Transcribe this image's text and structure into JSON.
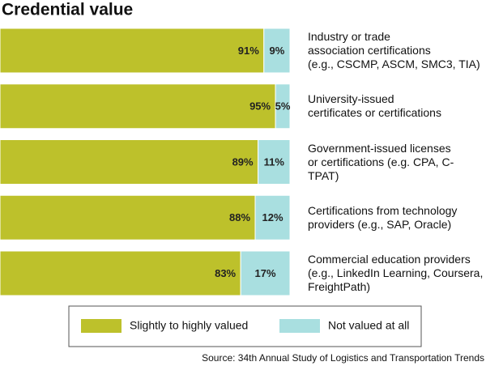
{
  "chart_data": {
    "type": "stacked-bar-horizontal",
    "title": "Credential value",
    "categories": [
      "Industry or trade\nassociation certifications\n(e.g., CSCMP, ASCM, SMC3, TIA)",
      "University-issued\ncertificates or certifications",
      "Government-issued licenses\nor certifications (e.g. CPA, C-TPAT)",
      "Certifications from technology\nproviders (e.g., SAP, Oracle)",
      "Commercial education providers\n(e.g., LinkedIn Learning, Coursera,\nFreightPath)"
    ],
    "series": [
      {
        "name": "Slightly to highly valued",
        "color": "#bdc12b",
        "values": [
          91,
          95,
          89,
          88,
          83
        ],
        "value_labels": [
          "91%",
          "95%",
          "89%",
          "88%",
          "83%"
        ]
      },
      {
        "name": "Not valued at all",
        "color": "#a9dfe0",
        "values": [
          9,
          5,
          11,
          12,
          17
        ],
        "value_labels": [
          "9%",
          "5%",
          "11%",
          "12%",
          "17%"
        ]
      }
    ],
    "xlim": [
      0,
      100
    ],
    "source": "Source: 34th Annual Study of Logistics and Transportation Trends"
  }
}
